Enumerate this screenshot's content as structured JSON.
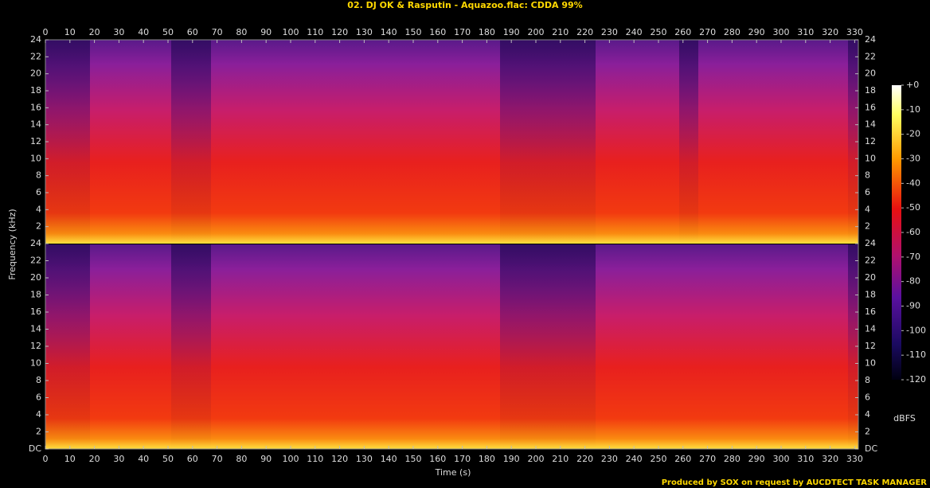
{
  "chart_data": {
    "type": "spectrogram",
    "title": "02. DJ OK & Rasputin - Aquazoo.flac: CDDA 99%",
    "x_label": "Time (s)",
    "y_label": "Frequency (kHz)",
    "xlim": [
      0,
      331.5
    ],
    "xticks": [
      0,
      10,
      20,
      30,
      40,
      50,
      60,
      70,
      80,
      90,
      100,
      110,
      120,
      130,
      140,
      150,
      160,
      170,
      180,
      190,
      200,
      210,
      220,
      230,
      240,
      250,
      260,
      270,
      280,
      290,
      300,
      310,
      320,
      330
    ],
    "panels": [
      {
        "ylim": [
          0,
          24
        ],
        "yticks": [
          2,
          4,
          6,
          8,
          10,
          12,
          14,
          16,
          18,
          20,
          22,
          24
        ]
      },
      {
        "ylim": [
          0,
          24
        ],
        "yticks": [
          {
            "value": 0,
            "label": "DC"
          },
          2,
          4,
          6,
          8,
          10,
          12,
          14,
          16,
          18,
          20,
          22,
          24
        ]
      }
    ],
    "colorbar": {
      "label": "dBFS",
      "zlim": [
        -120,
        0
      ],
      "zticks": [
        {
          "value": 0,
          "label": "+0"
        },
        -10,
        -20,
        -30,
        -40,
        -50,
        -60,
        -70,
        -80,
        -90,
        -100,
        -110,
        -120
      ]
    },
    "footer": "Produced by SOX on request by AUCDTECT TASK MANAGER"
  }
}
